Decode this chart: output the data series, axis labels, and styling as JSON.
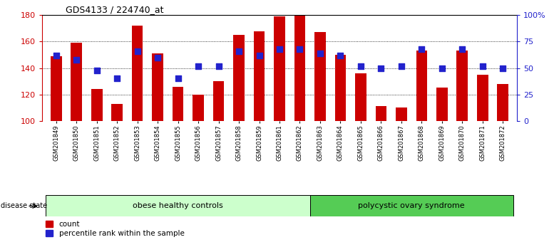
{
  "title": "GDS4133 / 224740_at",
  "samples": [
    "GSM201849",
    "GSM201850",
    "GSM201851",
    "GSM201852",
    "GSM201853",
    "GSM201854",
    "GSM201855",
    "GSM201856",
    "GSM201857",
    "GSM201858",
    "GSM201859",
    "GSM201861",
    "GSM201862",
    "GSM201863",
    "GSM201864",
    "GSM201865",
    "GSM201866",
    "GSM201867",
    "GSM201868",
    "GSM201869",
    "GSM201870",
    "GSM201871",
    "GSM201872"
  ],
  "counts": [
    149,
    159,
    124,
    113,
    172,
    151,
    126,
    120,
    130,
    165,
    168,
    179,
    180,
    167,
    150,
    136,
    111,
    110,
    153,
    125,
    153,
    135,
    128
  ],
  "percentiles_pct": [
    62,
    58,
    48,
    40,
    66,
    60,
    40,
    52,
    52,
    66,
    62,
    68,
    68,
    64,
    62,
    52,
    50,
    52,
    68,
    50,
    68,
    52,
    50
  ],
  "bar_color": "#cc0000",
  "dot_color": "#2222cc",
  "ylim_left": [
    100,
    180
  ],
  "ylim_right": [
    0,
    100
  ],
  "yticks_left": [
    100,
    120,
    140,
    160,
    180
  ],
  "yticks_right": [
    0,
    25,
    50,
    75,
    100
  ],
  "ytick_labels_right": [
    "0",
    "25",
    "50",
    "75",
    "100%"
  ],
  "group1_label": "obese healthy controls",
  "group2_label": "polycystic ovary syndrome",
  "group1_count": 13,
  "group2_count": 10,
  "disease_state_label": "disease state",
  "legend_count_label": "count",
  "legend_pct_label": "percentile rank within the sample",
  "group1_color": "#ccffcc",
  "group2_color": "#55cc55",
  "bar_width": 0.55,
  "bar_bottom": 100,
  "dot_size": 28,
  "title_fontsize": 9,
  "tick_fontsize": 6,
  "band_fontsize": 8,
  "legend_fontsize": 7.5
}
